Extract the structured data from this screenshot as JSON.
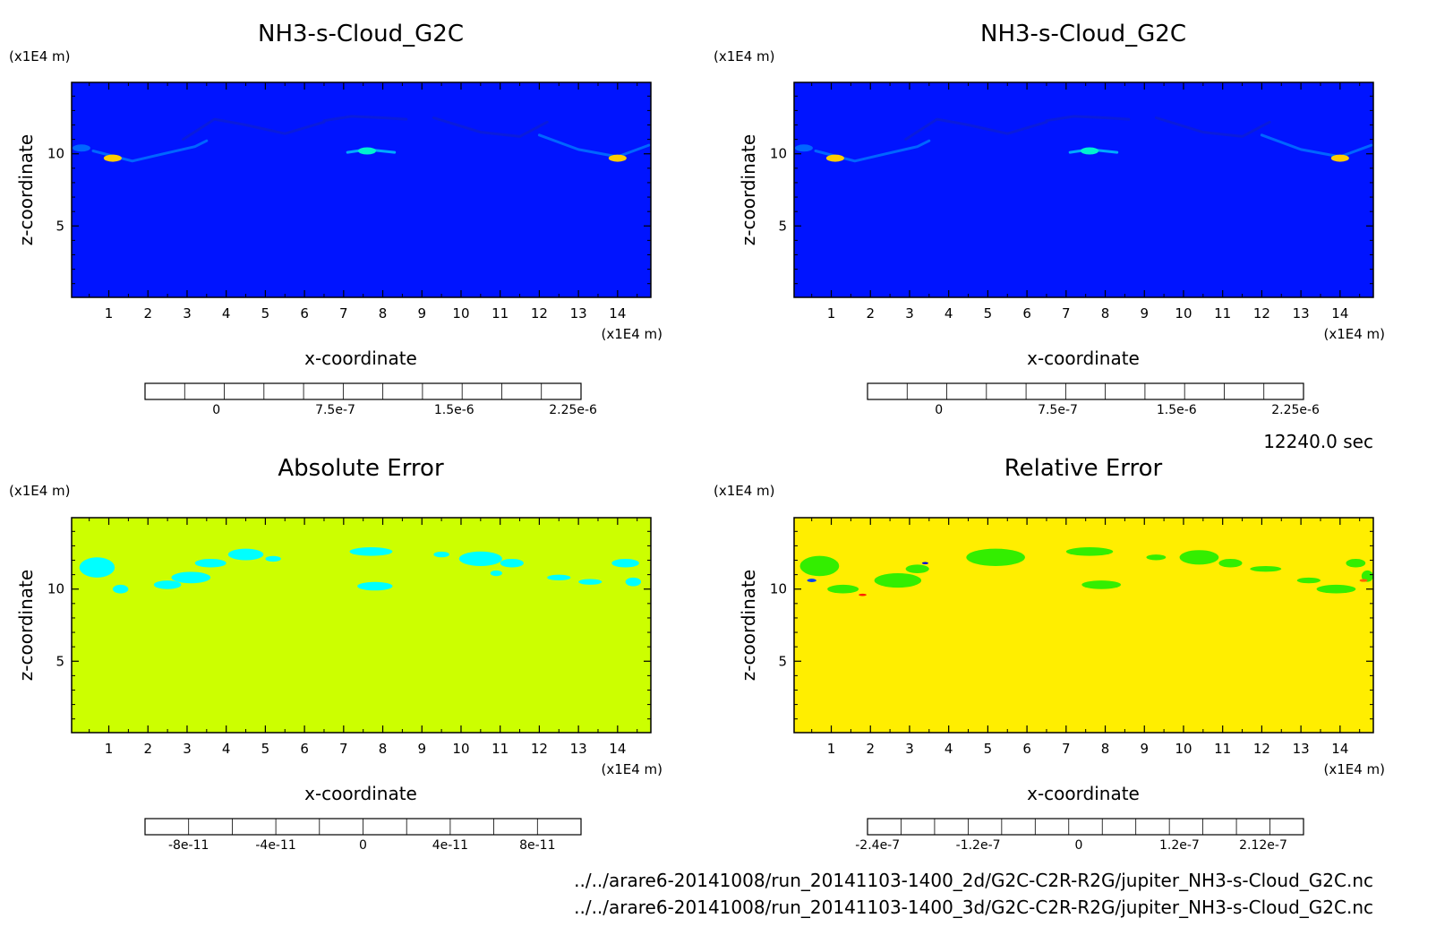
{
  "time_label": "12240.0 sec",
  "files": [
    "../../arare6-20141008/run_20141103-1400_2d/G2C-C2R-R2G/jupiter_NH3-s-Cloud_G2C.nc",
    "../../arare6-20141008/run_20141103-1400_3d/G2C-C2R-R2G/jupiter_NH3-s-Cloud_G2C.nc"
  ],
  "chart_data": [
    {
      "type": "heatmap",
      "title": "NH3-s-Cloud_G2C",
      "xlabel": "x-coordinate",
      "ylabel": "z-coordinate",
      "x_unit": "(x1E4 m)",
      "y_unit": "(x1E4 m)",
      "xlim": [
        0.05,
        14.85
      ],
      "ylim": [
        0.05,
        14.95
      ],
      "xticks": [
        "1",
        "2",
        "3",
        "4",
        "5",
        "6",
        "7",
        "8",
        "9",
        "10",
        "11",
        "12",
        "13",
        "14"
      ],
      "yticks": [
        "5",
        "10"
      ],
      "background": "#0014ff",
      "colorbar": {
        "colors": [
          "#7f00bf",
          "#0000cc",
          "#0014ff",
          "#0066ff",
          "#00aaff",
          "#00f0d0",
          "#aaf000",
          "#ffcc00",
          "#ff8800",
          "#ff2200",
          "#ff4455"
        ],
        "labels": [
          "0",
          "7.5e-7",
          "1.5e-6",
          "2.25e-6"
        ],
        "label_positions": [
          1.8,
          4.8,
          7.8,
          10.8
        ]
      },
      "features": [
        {
          "x": [
            0.6,
            1.6,
            2.4,
            3.2,
            3.5
          ],
          "z": [
            10.2,
            9.5,
            10.0,
            10.5,
            10.9
          ],
          "color": "#0066ff"
        },
        {
          "x": [
            2.9,
            3.7,
            4.5,
            5.5,
            6.5
          ],
          "z": [
            11.0,
            12.4,
            12.0,
            11.4,
            12.2
          ],
          "color": "#0a1cdc"
        },
        {
          "x": [
            6.5,
            7.2,
            8.0,
            8.6
          ],
          "z": [
            12.3,
            12.6,
            12.5,
            12.4
          ],
          "color": "#0a1cdc"
        },
        {
          "x": [
            9.3,
            10.5,
            11.5,
            12.2
          ],
          "z": [
            12.5,
            11.5,
            11.2,
            12.2
          ],
          "color": "#0a1cdc"
        },
        {
          "x": [
            12.0,
            13.0,
            14.0,
            14.8
          ],
          "z": [
            11.3,
            10.3,
            9.8,
            10.6
          ],
          "color": "#0066ff"
        },
        {
          "x": [
            7.1,
            7.6,
            8.3
          ],
          "z": [
            10.1,
            10.3,
            10.1
          ],
          "color": "#00aaff"
        }
      ],
      "peaks": [
        {
          "x": 1.1,
          "z": 9.7,
          "color": "#ffcc00"
        },
        {
          "x": 7.6,
          "z": 10.2,
          "color": "#00f0d0"
        },
        {
          "x": 14.0,
          "z": 9.7,
          "color": "#ffcc00"
        },
        {
          "x": 0.3,
          "z": 10.4,
          "color": "#0066ff"
        }
      ]
    },
    {
      "type": "heatmap",
      "title": "NH3-s-Cloud_G2C",
      "xlabel": "x-coordinate",
      "ylabel": "z-coordinate",
      "x_unit": "(x1E4 m)",
      "y_unit": "(x1E4 m)",
      "xlim": [
        0.05,
        14.85
      ],
      "ylim": [
        0.05,
        14.95
      ],
      "xticks": [
        "1",
        "2",
        "3",
        "4",
        "5",
        "6",
        "7",
        "8",
        "9",
        "10",
        "11",
        "12",
        "13",
        "14"
      ],
      "yticks": [
        "5",
        "10"
      ],
      "background": "#0014ff",
      "colorbar": {
        "colors": [
          "#7f00bf",
          "#0000cc",
          "#0014ff",
          "#0066ff",
          "#00aaff",
          "#00f0d0",
          "#aaf000",
          "#ffcc00",
          "#ff8800",
          "#ff2200",
          "#ff4455"
        ],
        "labels": [
          "0",
          "7.5e-7",
          "1.5e-6",
          "2.25e-6"
        ],
        "label_positions": [
          1.8,
          4.8,
          7.8,
          10.8
        ]
      },
      "features": [
        {
          "x": [
            0.6,
            1.6,
            2.4,
            3.2,
            3.5
          ],
          "z": [
            10.2,
            9.5,
            10.0,
            10.5,
            10.9
          ],
          "color": "#0066ff"
        },
        {
          "x": [
            2.9,
            3.7,
            4.5,
            5.5,
            6.5
          ],
          "z": [
            11.0,
            12.4,
            12.0,
            11.4,
            12.2
          ],
          "color": "#0a1cdc"
        },
        {
          "x": [
            6.5,
            7.2,
            8.0,
            8.6
          ],
          "z": [
            12.3,
            12.6,
            12.5,
            12.4
          ],
          "color": "#0a1cdc"
        },
        {
          "x": [
            9.3,
            10.5,
            11.5,
            12.2
          ],
          "z": [
            12.5,
            11.5,
            11.2,
            12.2
          ],
          "color": "#0a1cdc"
        },
        {
          "x": [
            12.0,
            13.0,
            14.0,
            14.8
          ],
          "z": [
            11.3,
            10.3,
            9.8,
            10.6
          ],
          "color": "#0066ff"
        },
        {
          "x": [
            7.1,
            7.6,
            8.3
          ],
          "z": [
            10.1,
            10.3,
            10.1
          ],
          "color": "#00aaff"
        }
      ],
      "peaks": [
        {
          "x": 1.1,
          "z": 9.7,
          "color": "#ffcc00"
        },
        {
          "x": 7.6,
          "z": 10.2,
          "color": "#00f0d0"
        },
        {
          "x": 14.0,
          "z": 9.7,
          "color": "#ffcc00"
        },
        {
          "x": 0.3,
          "z": 10.4,
          "color": "#0066ff"
        }
      ]
    },
    {
      "type": "heatmap",
      "title": "Absolute Error",
      "xlabel": "x-coordinate",
      "ylabel": "z-coordinate",
      "x_unit": "(x1E4 m)",
      "y_unit": "(x1E4 m)",
      "xlim": [
        0.05,
        14.85
      ],
      "ylim": [
        0.05,
        14.95
      ],
      "xticks": [
        "1",
        "2",
        "3",
        "4",
        "5",
        "6",
        "7",
        "8",
        "9",
        "10",
        "11",
        "12",
        "13",
        "14"
      ],
      "yticks": [
        "5",
        "10"
      ],
      "background": "#ccff00",
      "colorbar": {
        "colors": [
          "#7f00aa",
          "#0018b0",
          "#0044ee",
          "#0099ee",
          "#00ffff",
          "#ccff00",
          "#ffaa00",
          "#ff6600",
          "#ff2200",
          "#ffaaaa"
        ],
        "labels": [
          "-8e-11",
          "-4e-11",
          "0",
          "4e-11",
          "8e-11"
        ],
        "label_positions": [
          1.0,
          3.0,
          5.0,
          7.0,
          9.0
        ]
      },
      "blobs": [
        {
          "x": 0.7,
          "z": 11.5,
          "rx": 0.45,
          "rz": 0.7,
          "color": "#00ffff"
        },
        {
          "x": 1.3,
          "z": 10.0,
          "rx": 0.2,
          "rz": 0.3,
          "color": "#00ffff"
        },
        {
          "x": 2.5,
          "z": 10.3,
          "rx": 0.35,
          "rz": 0.3,
          "color": "#00ffff"
        },
        {
          "x": 3.1,
          "z": 10.8,
          "rx": 0.5,
          "rz": 0.4,
          "color": "#00ffff"
        },
        {
          "x": 3.6,
          "z": 11.8,
          "rx": 0.4,
          "rz": 0.3,
          "color": "#00ffff"
        },
        {
          "x": 4.5,
          "z": 12.4,
          "rx": 0.45,
          "rz": 0.4,
          "color": "#00ffff"
        },
        {
          "x": 5.2,
          "z": 12.1,
          "rx": 0.2,
          "rz": 0.2,
          "color": "#00ffff"
        },
        {
          "x": 7.7,
          "z": 12.6,
          "rx": 0.55,
          "rz": 0.3,
          "color": "#00ffff"
        },
        {
          "x": 7.8,
          "z": 10.2,
          "rx": 0.45,
          "rz": 0.3,
          "color": "#00ffff"
        },
        {
          "x": 9.5,
          "z": 12.4,
          "rx": 0.2,
          "rz": 0.2,
          "color": "#00ffff"
        },
        {
          "x": 10.5,
          "z": 12.1,
          "rx": 0.55,
          "rz": 0.5,
          "color": "#00ffff"
        },
        {
          "x": 11.3,
          "z": 11.8,
          "rx": 0.3,
          "rz": 0.3,
          "color": "#00ffff"
        },
        {
          "x": 10.9,
          "z": 11.1,
          "rx": 0.15,
          "rz": 0.2,
          "color": "#00ffff"
        },
        {
          "x": 12.5,
          "z": 10.8,
          "rx": 0.3,
          "rz": 0.2,
          "color": "#00ffff"
        },
        {
          "x": 13.3,
          "z": 10.5,
          "rx": 0.3,
          "rz": 0.2,
          "color": "#00ffff"
        },
        {
          "x": 14.2,
          "z": 11.8,
          "rx": 0.35,
          "rz": 0.3,
          "color": "#00ffff"
        },
        {
          "x": 14.4,
          "z": 10.5,
          "rx": 0.2,
          "rz": 0.3,
          "color": "#00ffff"
        }
      ]
    },
    {
      "type": "heatmap",
      "title": "Relative Error",
      "xlabel": "x-coordinate",
      "ylabel": "z-coordinate",
      "x_unit": "(x1E4 m)",
      "y_unit": "(x1E4 m)",
      "xlim": [
        0.05,
        14.85
      ],
      "ylim": [
        0.05,
        14.95
      ],
      "xticks": [
        "1",
        "2",
        "3",
        "4",
        "5",
        "6",
        "7",
        "8",
        "9",
        "10",
        "11",
        "12",
        "13",
        "14"
      ],
      "yticks": [
        "5",
        "10"
      ],
      "background": "#ffee00",
      "colorbar": {
        "colors": [
          "#7f00aa",
          "#000088",
          "#0000dd",
          "#0044ee",
          "#0099ee",
          "#00eeee",
          "#33ee00",
          "#ffee00",
          "#ffaa00",
          "#ff6600",
          "#ff2200",
          "#ff3344",
          "#ffaaaa"
        ],
        "labels": [
          "-2.4e-7",
          "-1.2e-7",
          "0",
          "1.2e-7",
          "2.12e-7"
        ],
        "label_positions": [
          0.3,
          3.3,
          6.3,
          9.3,
          11.8
        ]
      },
      "blobs": [
        {
          "x": 0.7,
          "z": 11.6,
          "rx": 0.5,
          "rz": 0.7,
          "color": "#33ee00"
        },
        {
          "x": 1.3,
          "z": 10.0,
          "rx": 0.4,
          "rz": 0.3,
          "color": "#33ee00"
        },
        {
          "x": 2.7,
          "z": 10.6,
          "rx": 0.6,
          "rz": 0.5,
          "color": "#33ee00"
        },
        {
          "x": 3.2,
          "z": 11.4,
          "rx": 0.3,
          "rz": 0.3,
          "color": "#33ee00"
        },
        {
          "x": 5.2,
          "z": 12.2,
          "rx": 0.75,
          "rz": 0.6,
          "color": "#33ee00"
        },
        {
          "x": 7.6,
          "z": 12.6,
          "rx": 0.6,
          "rz": 0.3,
          "color": "#33ee00"
        },
        {
          "x": 7.9,
          "z": 10.3,
          "rx": 0.5,
          "rz": 0.3,
          "color": "#33ee00"
        },
        {
          "x": 9.3,
          "z": 12.2,
          "rx": 0.25,
          "rz": 0.2,
          "color": "#33ee00"
        },
        {
          "x": 10.4,
          "z": 12.2,
          "rx": 0.5,
          "rz": 0.5,
          "color": "#33ee00"
        },
        {
          "x": 11.2,
          "z": 11.8,
          "rx": 0.3,
          "rz": 0.3,
          "color": "#33ee00"
        },
        {
          "x": 12.1,
          "z": 11.4,
          "rx": 0.4,
          "rz": 0.2,
          "color": "#33ee00"
        },
        {
          "x": 13.2,
          "z": 10.6,
          "rx": 0.3,
          "rz": 0.2,
          "color": "#33ee00"
        },
        {
          "x": 13.9,
          "z": 10.0,
          "rx": 0.5,
          "rz": 0.3,
          "color": "#33ee00"
        },
        {
          "x": 14.4,
          "z": 11.8,
          "rx": 0.25,
          "rz": 0.3,
          "color": "#33ee00"
        },
        {
          "x": 14.7,
          "z": 10.9,
          "rx": 0.15,
          "rz": 0.4,
          "color": "#33ee00"
        },
        {
          "x": 0.5,
          "z": 10.6,
          "rx": 0.12,
          "rz": 0.12,
          "color": "#0044ee"
        },
        {
          "x": 3.4,
          "z": 11.8,
          "rx": 0.08,
          "rz": 0.08,
          "color": "#0000dd"
        },
        {
          "x": 1.8,
          "z": 9.6,
          "rx": 0.1,
          "rz": 0.08,
          "color": "#ff2200"
        },
        {
          "x": 14.6,
          "z": 10.6,
          "rx": 0.1,
          "rz": 0.1,
          "color": "#ff6600"
        }
      ]
    }
  ]
}
